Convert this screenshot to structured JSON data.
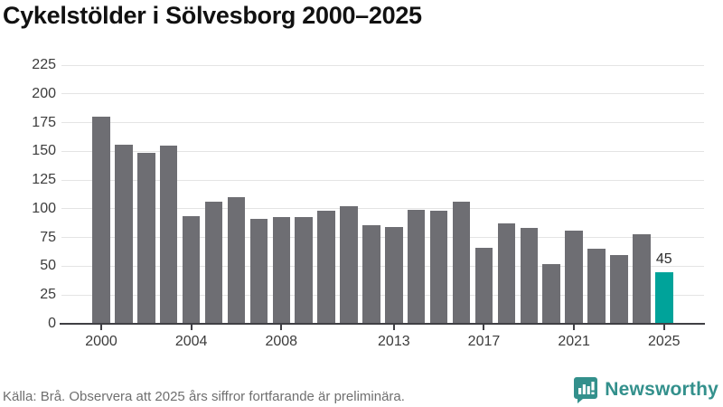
{
  "title": "Cykelstölder i Sölvesborg 2000–2025",
  "footer": {
    "source_note": "Källa: Brå. Observera att 2025 års siffror fortfarande är preliminära."
  },
  "branding": {
    "logo_text": "Newsworthy",
    "logo_icon": "bar-chart-speech-bubble-icon",
    "logo_color": "#33908c"
  },
  "colors": {
    "bar": "#6e6e73",
    "highlight": "#00a39a",
    "gridline": "#e4e4e4",
    "axis": "#3f3f44",
    "tick_label": "#3c3c3c"
  },
  "chart_data": {
    "type": "bar",
    "title": "Cykelstölder i Sölvesborg 2000–2025",
    "xlabel": "",
    "ylabel": "",
    "categories": [
      2000,
      2001,
      2002,
      2003,
      2004,
      2005,
      2006,
      2007,
      2008,
      2009,
      2010,
      2011,
      2012,
      2013,
      2014,
      2015,
      2016,
      2017,
      2018,
      2019,
      2020,
      2021,
      2022,
      2023,
      2024,
      2025
    ],
    "values": [
      180,
      156,
      149,
      155,
      94,
      106,
      110,
      91,
      93,
      93,
      98,
      102,
      86,
      84,
      99,
      98,
      106,
      66,
      87,
      83,
      52,
      81,
      65,
      60,
      78,
      45
    ],
    "highlight": {
      "category": 2025,
      "value": 45,
      "data_label": "45"
    },
    "ylim": [
      0,
      225
    ],
    "ytick_step": 25,
    "yticks": [
      0,
      25,
      50,
      75,
      100,
      125,
      150,
      175,
      200,
      225
    ],
    "xticks": [
      2000,
      2004,
      2008,
      2013,
      2017,
      2021,
      2025
    ],
    "grid": "horizontal-only",
    "legend": "none"
  }
}
